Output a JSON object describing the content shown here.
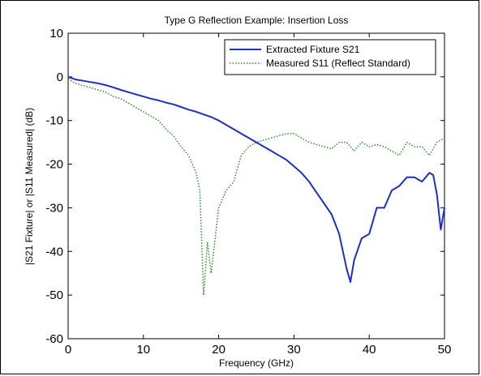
{
  "chart_data": {
    "type": "line",
    "title": "Type G Reflection Example: Insertion Loss",
    "xlabel": "Frequency (GHz)",
    "ylabel": "|S21 Fixture| or |S11 Measured| (dB)",
    "xlim": [
      0,
      50
    ],
    "ylim": [
      -60,
      10
    ],
    "xticks": [
      0,
      10,
      20,
      30,
      40,
      50
    ],
    "yticks": [
      10,
      0,
      -10,
      -20,
      -30,
      -40,
      -50,
      -60
    ],
    "grid": false,
    "legend_position": "top-right",
    "series": [
      {
        "name": "Extracted Fixture S21",
        "color": "#1f2fbf",
        "style": "solid",
        "x": [
          0,
          1,
          2,
          3,
          4,
          5,
          6,
          7,
          8,
          9,
          10,
          11,
          12,
          13,
          14,
          15,
          16,
          17,
          18,
          19,
          20,
          21,
          22,
          23,
          24,
          25,
          26,
          27,
          28,
          29,
          30,
          31,
          32,
          33,
          34,
          35,
          36,
          37,
          37.5,
          38,
          39,
          39.5,
          40,
          41,
          42,
          43,
          44,
          45,
          46,
          47,
          48,
          48.5,
          49,
          49.5,
          50
        ],
        "y": [
          0,
          -0.6,
          -0.9,
          -1.2,
          -1.5,
          -1.9,
          -2.4,
          -3.0,
          -3.5,
          -4.0,
          -4.5,
          -5.0,
          -5.4,
          -5.9,
          -6.3,
          -6.9,
          -7.5,
          -8.0,
          -8.6,
          -9.2,
          -10.0,
          -11.0,
          -12.0,
          -13.0,
          -14.0,
          -15.0,
          -16.0,
          -17.0,
          -18.0,
          -19.0,
          -20.5,
          -22.0,
          -24.0,
          -26.5,
          -29.0,
          -31.5,
          -36.0,
          -44.0,
          -47.0,
          -42.0,
          -37.0,
          -36.5,
          -36.0,
          -30.0,
          -30.0,
          -26.0,
          -25.0,
          -23.0,
          -23.0,
          -24.0,
          -22.0,
          -22.5,
          -27.0,
          -35.0,
          -30.0
        ]
      },
      {
        "name": "Measured S11 (Reflect Standard)",
        "color": "#2e8b2e",
        "style": "dotted",
        "x": [
          0,
          1,
          2,
          3,
          4,
          5,
          6,
          7,
          8,
          9,
          10,
          11,
          12,
          13,
          14,
          15,
          16,
          17,
          17.5,
          18,
          18.5,
          19,
          20,
          21,
          22,
          23,
          24,
          25,
          26,
          27,
          28,
          29,
          30,
          31,
          32,
          33,
          34,
          35,
          36,
          37,
          38,
          39,
          40,
          41,
          42,
          43,
          44,
          45,
          46,
          47,
          48,
          49,
          50
        ],
        "y": [
          -0.5,
          -1.5,
          -2.0,
          -2.5,
          -3.0,
          -3.5,
          -4.5,
          -5.0,
          -6.0,
          -7.0,
          -8.0,
          -9.0,
          -10.0,
          -12.0,
          -13.5,
          -16.0,
          -18.0,
          -22.0,
          -26.0,
          -50.0,
          -38.0,
          -45.0,
          -30.0,
          -26.0,
          -24.0,
          -18.0,
          -16.0,
          -15.0,
          -14.5,
          -14.0,
          -13.5,
          -13.0,
          -13.0,
          -14.0,
          -15.0,
          -15.5,
          -16.0,
          -16.5,
          -15.0,
          -15.0,
          -17.0,
          -15.0,
          -16.0,
          -15.5,
          -16.0,
          -17.0,
          -18.0,
          -15.0,
          -16.0,
          -16.0,
          -18.0,
          -15.0,
          -14.0
        ]
      }
    ]
  }
}
